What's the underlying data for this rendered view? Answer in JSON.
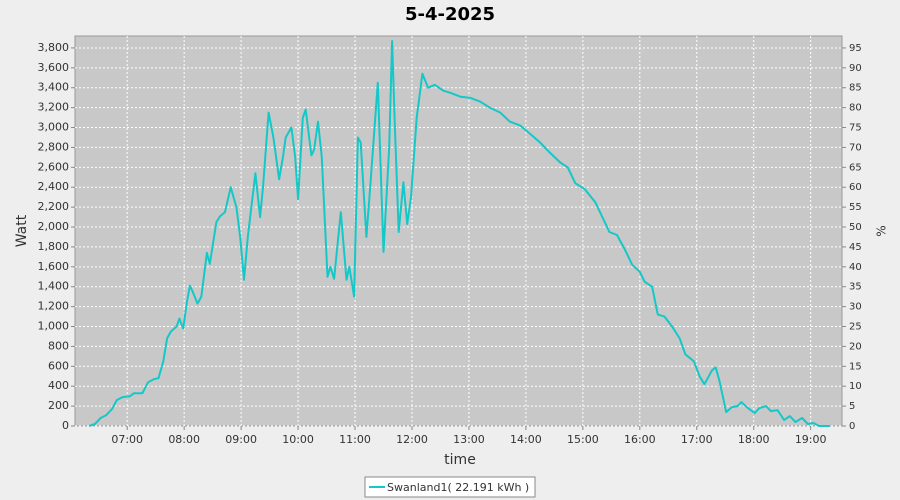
{
  "chart_data": {
    "type": "line",
    "title": "5-4-2025",
    "x_label": "time",
    "y_label": "Watt",
    "y2_label": "%",
    "x": [
      380,
      386,
      392,
      398,
      404,
      409,
      415,
      423,
      427,
      436,
      442,
      448,
      453,
      458,
      462,
      466,
      472,
      475,
      479,
      483,
      486,
      489,
      494,
      498,
      504,
      507,
      514,
      518,
      523,
      529,
      535,
      539,
      543,
      547,
      555,
      560,
      563,
      569,
      574,
      580,
      584,
      587,
      593,
      597,
      600,
      605,
      608,
      614,
      617,
      621,
      625,
      631,
      634,
      638,
      645,
      651,
      654,
      659,
      663,
      666,
      672,
      676,
      684,
      690,
      696,
      699,
      702,
      706,
      711,
      715,
      719,
      725,
      731,
      737,
      744,
      753,
      760,
      771,
      781,
      792,
      802,
      813,
      823,
      834,
      844,
      855,
      865,
      876,
      884,
      892,
      902,
      913,
      923,
      928,
      936,
      944,
      952,
      960,
      965,
      973,
      979,
      986,
      994,
      1002,
      1008,
      1017,
      1023,
      1028,
      1036,
      1040,
      1044,
      1051,
      1057,
      1063,
      1067,
      1074,
      1081,
      1086,
      1093,
      1098,
      1105,
      1112,
      1118,
      1124,
      1131,
      1137,
      1143,
      1149,
      1160
    ],
    "series": [
      {
        "name": "Swanland1( 22.191 kWh )",
        "color": "#14c8c8",
        "values": [
          0,
          20,
          80,
          110,
          170,
          260,
          290,
          300,
          330,
          330,
          440,
          470,
          480,
          650,
          880,
          950,
          1000,
          1080,
          980,
          1250,
          1410,
          1350,
          1230,
          1300,
          1740,
          1630,
          2050,
          2110,
          2150,
          2400,
          2200,
          1900,
          1470,
          1900,
          2540,
          2100,
          2400,
          3150,
          2900,
          2480,
          2700,
          2900,
          3000,
          2700,
          2280,
          3100,
          3180,
          2720,
          2780,
          3060,
          2700,
          1500,
          1600,
          1480,
          2150,
          1470,
          1600,
          1300,
          2900,
          2850,
          1900,
          2400,
          3450,
          1750,
          2800,
          3870,
          3000,
          1950,
          2450,
          2030,
          2300,
          3100,
          3540,
          3400,
          3430,
          3370,
          3350,
          3310,
          3300,
          3260,
          3200,
          3150,
          3060,
          3020,
          2940,
          2850,
          2750,
          2650,
          2600,
          2440,
          2380,
          2250,
          2050,
          1950,
          1920,
          1780,
          1620,
          1550,
          1450,
          1400,
          1120,
          1100,
          1000,
          880,
          720,
          650,
          500,
          420,
          560,
          590,
          450,
          140,
          190,
          200,
          240,
          180,
          130,
          180,
          200,
          150,
          160,
          60,
          100,
          40,
          80,
          20,
          30,
          0,
          0
        ]
      }
    ],
    "xlim": [
      365,
      1173
    ],
    "xticks": [
      {
        "value": 420,
        "label": "07:00"
      },
      {
        "value": 480,
        "label": "08:00"
      },
      {
        "value": 540,
        "label": "09:00"
      },
      {
        "value": 600,
        "label": "10:00"
      },
      {
        "value": 660,
        "label": "11:00"
      },
      {
        "value": 720,
        "label": "12:00"
      },
      {
        "value": 780,
        "label": "13:00"
      },
      {
        "value": 840,
        "label": "14:00"
      },
      {
        "value": 900,
        "label": "15:00"
      },
      {
        "value": 960,
        "label": "16:00"
      },
      {
        "value": 1020,
        "label": "17:00"
      },
      {
        "value": 1080,
        "label": "18:00"
      },
      {
        "value": 1140,
        "label": "19:00"
      }
    ],
    "ylim": [
      0,
      3920
    ],
    "yticks": [
      0,
      200,
      400,
      600,
      800,
      {
        "value": 1000,
        "label": "1,000"
      },
      {
        "value": 1200,
        "label": "1,200"
      },
      {
        "value": 1400,
        "label": "1,400"
      },
      {
        "value": 1600,
        "label": "1,600"
      },
      {
        "value": 1800,
        "label": "1,800"
      },
      {
        "value": 2000,
        "label": "2,000"
      },
      {
        "value": 2200,
        "label": "2,200"
      },
      {
        "value": 2400,
        "label": "2,400"
      },
      {
        "value": 2600,
        "label": "2,600"
      },
      {
        "value": 2800,
        "label": "2,800"
      },
      {
        "value": 3000,
        "label": "3,000"
      },
      {
        "value": 3200,
        "label": "3,200"
      },
      {
        "value": 3400,
        "label": "3,400"
      },
      {
        "value": 3600,
        "label": "3,600"
      },
      {
        "value": 3800,
        "label": "3,800"
      }
    ],
    "y2lim": [
      0,
      98
    ],
    "y2ticks": [
      0,
      5,
      10,
      15,
      20,
      25,
      30,
      35,
      40,
      45,
      50,
      55,
      60,
      65,
      70,
      75,
      80,
      85,
      90,
      95
    ],
    "grid": true
  }
}
